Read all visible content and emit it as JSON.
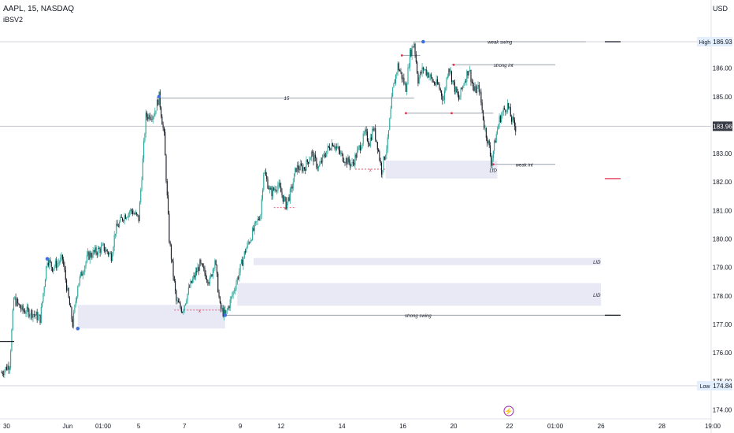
{
  "header": {
    "symbol_title": "AAPL, 15, NASDAQ",
    "indicator_name": "iBSV2",
    "currency": "USD"
  },
  "colors": {
    "up": "#26a69a",
    "down": "#131722",
    "zone_fill": "#e9e9f5",
    "level_line": "#9aa0ab",
    "swing_marker": "#3f6fdc",
    "minor_marker": "#e0314b",
    "last_price_bg": "#363a45",
    "lightning": "#9c27b0"
  },
  "chart_data": {
    "type": "candlestick",
    "title": "AAPL, 15, NASDAQ",
    "ylim": [
      173.6,
      187.5
    ],
    "y_ticks": [
      "186.00",
      "185.00",
      "184.00",
      "183.00",
      "182.00",
      "181.00",
      "180.00",
      "179.00",
      "178.00",
      "177.00",
      "176.00",
      "175.00",
      "174.00"
    ],
    "y_tick_values": [
      186,
      185,
      184,
      183,
      182,
      181,
      180,
      179,
      178,
      177,
      176,
      175,
      174
    ],
    "x_ticks": [
      "30",
      "Jun",
      "01:00",
      "5",
      "7",
      "9",
      "12",
      "14",
      "16",
      "20",
      "22",
      "01:00",
      "26",
      "28",
      "19:00"
    ],
    "x_tick_bars": [
      5,
      65,
      100,
      135,
      180,
      235,
      275,
      335,
      395,
      445,
      500,
      545,
      590,
      650,
      700
    ],
    "n_bars": 500,
    "price_path": [
      [
        0,
        175.3
      ],
      [
        8,
        175.6
      ],
      [
        12,
        177.9
      ],
      [
        20,
        177.5
      ],
      [
        30,
        177.4
      ],
      [
        38,
        177.2
      ],
      [
        45,
        179.3
      ],
      [
        50,
        179.0
      ],
      [
        60,
        179.3
      ],
      [
        65,
        178.1
      ],
      [
        70,
        177.0
      ],
      [
        75,
        178.4
      ],
      [
        85,
        179.4
      ],
      [
        95,
        179.6
      ],
      [
        100,
        179.7
      ],
      [
        108,
        179.4
      ],
      [
        112,
        180.3
      ],
      [
        120,
        180.8
      ],
      [
        128,
        181.0
      ],
      [
        135,
        180.7
      ],
      [
        142,
        184.3
      ],
      [
        150,
        184.4
      ],
      [
        155,
        185.0
      ],
      [
        160,
        183.6
      ],
      [
        165,
        180.0
      ],
      [
        172,
        177.8
      ],
      [
        178,
        177.5
      ],
      [
        185,
        178.3
      ],
      [
        195,
        179.1
      ],
      [
        205,
        178.5
      ],
      [
        210,
        179.3
      ],
      [
        215,
        177.6
      ],
      [
        220,
        177.3
      ],
      [
        226,
        177.9
      ],
      [
        232,
        178.6
      ],
      [
        240,
        179.6
      ],
      [
        248,
        180.3
      ],
      [
        255,
        180.9
      ],
      [
        258,
        182.4
      ],
      [
        265,
        181.6
      ],
      [
        272,
        181.9
      ],
      [
        280,
        181.2
      ],
      [
        285,
        181.7
      ],
      [
        290,
        182.5
      ],
      [
        298,
        182.5
      ],
      [
        305,
        183.0
      ],
      [
        312,
        182.5
      ],
      [
        320,
        183.1
      ],
      [
        326,
        183.4
      ],
      [
        335,
        182.9
      ],
      [
        345,
        182.6
      ],
      [
        352,
        183.2
      ],
      [
        358,
        183.7
      ],
      [
        362,
        183.4
      ],
      [
        366,
        183.9
      ],
      [
        370,
        183.3
      ],
      [
        374,
        182.4
      ],
      [
        380,
        183.4
      ],
      [
        385,
        185.2
      ],
      [
        390,
        186.1
      ],
      [
        394,
        185.7
      ],
      [
        398,
        185.3
      ],
      [
        402,
        186.5
      ],
      [
        406,
        186.9
      ],
      [
        410,
        185.6
      ],
      [
        415,
        186.0
      ],
      [
        420,
        185.8
      ],
      [
        425,
        185.5
      ],
      [
        430,
        185.4
      ],
      [
        435,
        184.9
      ],
      [
        440,
        186.1
      ],
      [
        445,
        185.4
      ],
      [
        450,
        184.9
      ],
      [
        455,
        185.5
      ],
      [
        460,
        186.0
      ],
      [
        465,
        185.2
      ],
      [
        470,
        185.3
      ],
      [
        475,
        184.0
      ],
      [
        480,
        183.2
      ],
      [
        482,
        182.7
      ],
      [
        486,
        183.5
      ],
      [
        490,
        184.2
      ],
      [
        494,
        184.5
      ],
      [
        498,
        184.7
      ],
      [
        502,
        184.2
      ],
      [
        506,
        183.9
      ]
    ],
    "levels": [
      {
        "label": "weak swing",
        "price": 186.93,
        "from": 406,
        "to": 575
      },
      {
        "label": "strong int",
        "price": 186.12,
        "from": 443,
        "to": 545
      },
      {
        "label": "15",
        "price": 184.95,
        "from": 155,
        "to": 406
      },
      {
        "label": "weak int",
        "price": 182.62,
        "from": 484,
        "to": 545
      },
      {
        "label": "strong swing",
        "price": 177.32,
        "from": 220,
        "to": 600
      },
      {
        "label": "",
        "price": 186.45,
        "from": 394,
        "to": 412
      },
      {
        "label": "",
        "price": 184.42,
        "from": 398,
        "to": 443
      },
      {
        "label": "",
        "price": 184.42,
        "from": 443,
        "to": 484
      }
    ],
    "zones": [
      {
        "label": "LID",
        "top": 182.75,
        "bottom": 182.12,
        "from": 378,
        "to": 488
      },
      {
        "label": "LID",
        "top": 179.33,
        "bottom": 179.08,
        "from": 248,
        "to": 590
      },
      {
        "label": "LID",
        "top": 178.45,
        "bottom": 177.65,
        "from": 232,
        "to": 590
      },
      {
        "label": "",
        "top": 177.68,
        "bottom": 176.85,
        "from": 75,
        "to": 220
      }
    ],
    "bos_marks": [
      {
        "label": "x",
        "price": 182.45,
        "from": 348,
        "to": 378
      },
      {
        "label": "x",
        "price": 181.1,
        "from": 268,
        "to": 290
      },
      {
        "label": "x",
        "price": 177.5,
        "from": 170,
        "to": 220
      }
    ],
    "swing_points": [
      {
        "kind": "major",
        "bar": 45,
        "price": 179.3
      },
      {
        "kind": "major",
        "bar": 75,
        "price": 176.85
      },
      {
        "kind": "major",
        "bar": 155,
        "price": 185.0
      },
      {
        "kind": "major",
        "bar": 220,
        "price": 177.32
      },
      {
        "kind": "major",
        "bar": 415,
        "price": 186.93
      },
      {
        "kind": "minor",
        "bar": 445,
        "price": 186.12
      },
      {
        "kind": "minor",
        "bar": 394,
        "price": 186.45
      },
      {
        "kind": "minor",
        "bar": 398,
        "price": 184.42
      },
      {
        "kind": "minor",
        "bar": 443,
        "price": 184.42
      },
      {
        "kind": "minor",
        "bar": 484,
        "price": 182.62
      }
    ],
    "scale_labels": [
      {
        "text": "High",
        "price": 186.93,
        "value": "186.93"
      },
      {
        "text": "Low",
        "price": 174.84,
        "value": "174.84"
      }
    ],
    "last_price": {
      "value": "183.96",
      "price": 183.96
    },
    "right_ticks": [
      {
        "price": 186.93,
        "color": "#131722"
      },
      {
        "price": 182.12,
        "color": "#e0314b"
      },
      {
        "price": 177.32,
        "color": "#131722"
      }
    ],
    "left_ticks": [
      176.4
    ]
  }
}
